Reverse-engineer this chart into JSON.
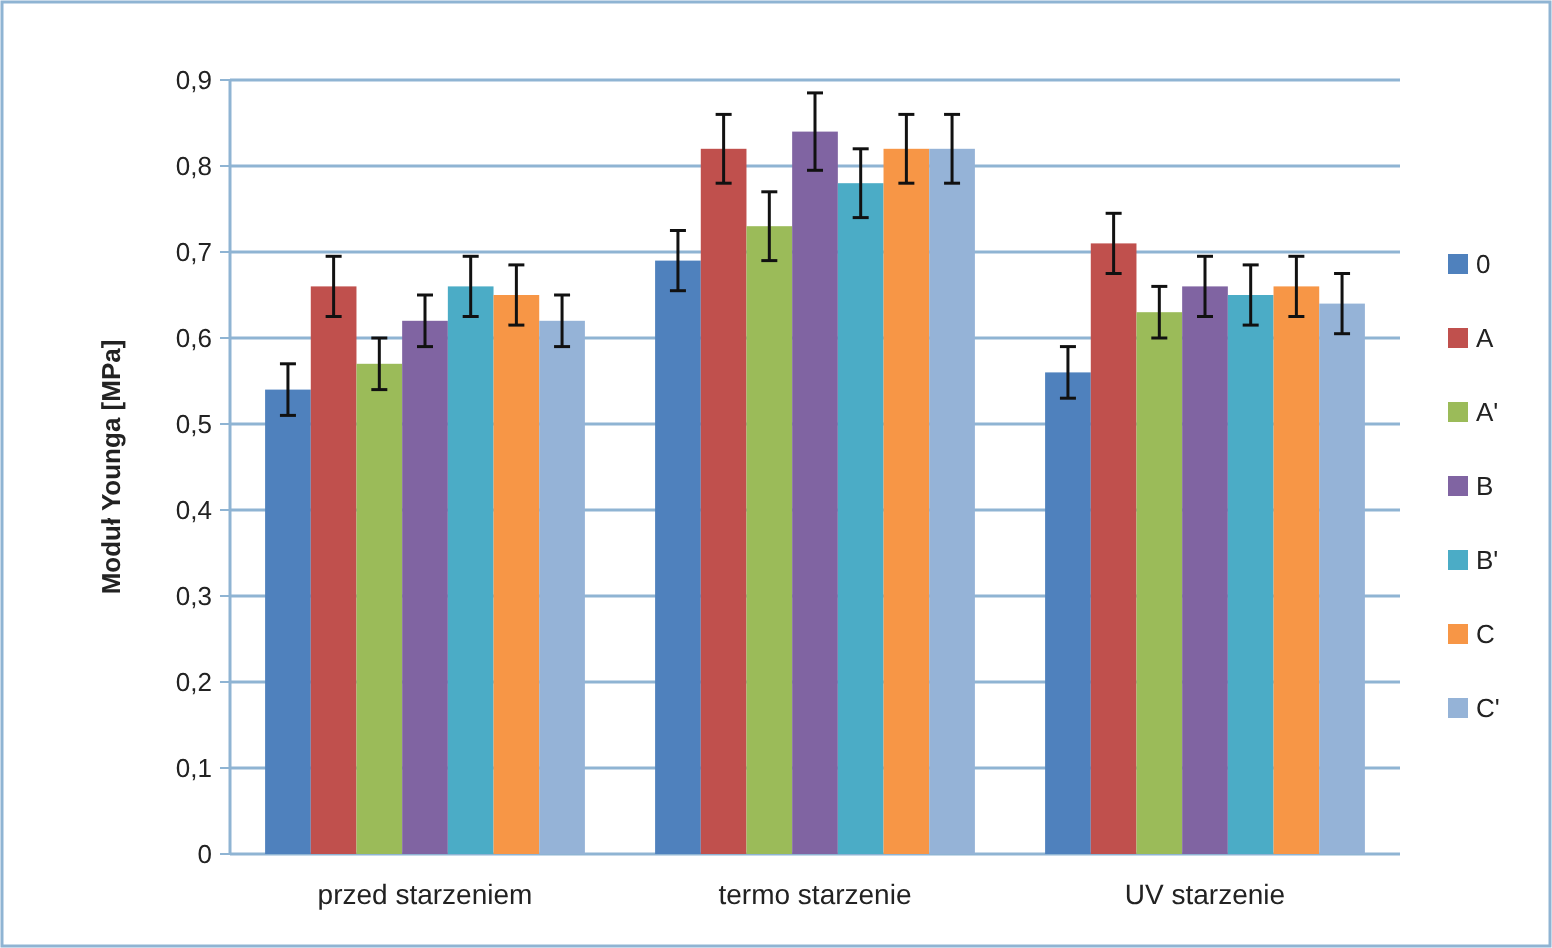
{
  "chart_data": {
    "type": "bar",
    "ylabel": "Moduł Younga [MPa]",
    "categories": [
      "przed starzeniem",
      "termo starzenie",
      "UV starzenie"
    ],
    "series": [
      {
        "name": "0",
        "color": "#4f81bd",
        "values": [
          0.54,
          0.69,
          0.56
        ],
        "errors": [
          0.03,
          0.035,
          0.03
        ]
      },
      {
        "name": "A",
        "color": "#c0504d",
        "values": [
          0.66,
          0.82,
          0.71
        ],
        "errors": [
          0.035,
          0.04,
          0.035
        ]
      },
      {
        "name": "A'",
        "color": "#9bbb59",
        "values": [
          0.57,
          0.73,
          0.63
        ],
        "errors": [
          0.03,
          0.04,
          0.03
        ]
      },
      {
        "name": "B",
        "color": "#8064a2",
        "values": [
          0.62,
          0.84,
          0.66
        ],
        "errors": [
          0.03,
          0.045,
          0.035
        ]
      },
      {
        "name": "B'",
        "color": "#4bacc6",
        "values": [
          0.66,
          0.78,
          0.65
        ],
        "errors": [
          0.035,
          0.04,
          0.035
        ]
      },
      {
        "name": "C",
        "color": "#f79646",
        "values": [
          0.65,
          0.82,
          0.66
        ],
        "errors": [
          0.035,
          0.04,
          0.035
        ]
      },
      {
        "name": "C'",
        "color": "#95b3d7",
        "values": [
          0.62,
          0.82,
          0.64
        ],
        "errors": [
          0.03,
          0.04,
          0.035
        ]
      }
    ],
    "ylim": [
      0,
      0.9
    ],
    "yticks": [
      {
        "value": 0,
        "label": "0"
      },
      {
        "value": 0.1,
        "label": "0,1"
      },
      {
        "value": 0.2,
        "label": "0,2"
      },
      {
        "value": 0.3,
        "label": "0,3"
      },
      {
        "value": 0.4,
        "label": "0,4"
      },
      {
        "value": 0.5,
        "label": "0,5"
      },
      {
        "value": 0.6,
        "label": "0,6"
      },
      {
        "value": 0.7,
        "label": "0,7"
      },
      {
        "value": 0.8,
        "label": "0,8"
      },
      {
        "value": 0.9,
        "label": "0,9"
      }
    ],
    "grid": "y",
    "legend": "right"
  }
}
